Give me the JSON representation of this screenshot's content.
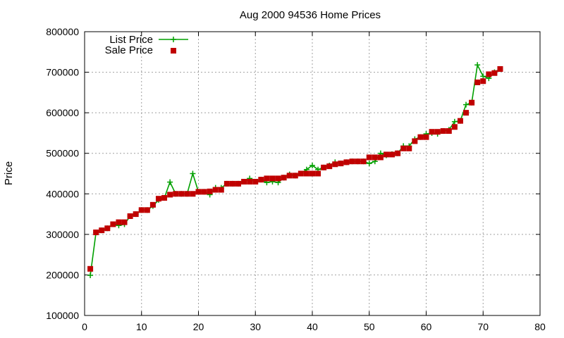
{
  "chart_data": {
    "type": "line",
    "title": "Aug 2000 94536 Home Prices",
    "xlabel": "",
    "ylabel": "Price",
    "xlim": [
      0,
      80
    ],
    "ylim": [
      100000,
      800000
    ],
    "x_ticks": [
      "0",
      "10",
      "20",
      "30",
      "40",
      "50",
      "60",
      "70",
      "80"
    ],
    "y_ticks": [
      "100000",
      "200000",
      "300000",
      "400000",
      "500000",
      "600000",
      "700000",
      "800000"
    ],
    "grid": true,
    "legend_position": "top-left",
    "series": [
      {
        "name": "List Price",
        "color": "#00a000",
        "marker": "plus",
        "x": [
          1,
          2,
          3,
          4,
          5,
          6,
          7,
          8,
          9,
          10,
          11,
          12,
          13,
          14,
          15,
          16,
          17,
          18,
          19,
          20,
          21,
          22,
          23,
          24,
          25,
          26,
          27,
          28,
          29,
          30,
          31,
          32,
          33,
          34,
          35,
          36,
          37,
          38,
          39,
          40,
          41,
          42,
          43,
          44,
          45,
          46,
          47,
          48,
          49,
          50,
          51,
          52,
          53,
          54,
          55,
          56,
          57,
          58,
          59,
          60,
          61,
          62,
          63,
          64,
          65,
          66,
          67,
          68,
          69,
          70,
          71,
          72,
          73
        ],
        "values": [
          199000,
          305000,
          310000,
          315000,
          325000,
          322000,
          325000,
          345000,
          350000,
          360000,
          360000,
          370000,
          385000,
          390000,
          429000,
          400000,
          400000,
          400000,
          450000,
          405000,
          405000,
          398000,
          415000,
          415000,
          425000,
          425000,
          425000,
          430000,
          438000,
          430000,
          435000,
          428000,
          430000,
          428000,
          440000,
          448000,
          445000,
          450000,
          460000,
          470000,
          460000,
          465000,
          470000,
          478000,
          475000,
          478000,
          480000,
          480000,
          480000,
          475000,
          480000,
          500000,
          495000,
          498000,
          500000,
          518000,
          518000,
          535000,
          540000,
          548000,
          550000,
          548000,
          555000,
          558000,
          578000,
          580000,
          620000,
          625000,
          718000,
          690000,
          685000,
          700000,
          708000
        ]
      },
      {
        "name": "Sale Price",
        "color": "#c00000",
        "marker": "square",
        "x": [
          1,
          2,
          3,
          4,
          5,
          6,
          7,
          8,
          9,
          10,
          11,
          12,
          13,
          14,
          15,
          16,
          17,
          18,
          19,
          20,
          21,
          22,
          23,
          24,
          25,
          26,
          27,
          28,
          29,
          30,
          31,
          32,
          33,
          34,
          35,
          36,
          37,
          38,
          39,
          40,
          41,
          42,
          43,
          44,
          45,
          46,
          47,
          48,
          49,
          50,
          51,
          52,
          53,
          54,
          55,
          56,
          57,
          58,
          59,
          60,
          61,
          62,
          63,
          64,
          65,
          66,
          67,
          68,
          69,
          70,
          71,
          72,
          73
        ],
        "values": [
          215000,
          305000,
          310000,
          315000,
          325000,
          330000,
          330000,
          345000,
          350000,
          360000,
          360000,
          373000,
          388000,
          390000,
          398000,
          400000,
          400000,
          400000,
          400000,
          405000,
          405000,
          406000,
          410000,
          410000,
          425000,
          425000,
          425000,
          430000,
          430000,
          430000,
          435000,
          438000,
          438000,
          438000,
          440000,
          445000,
          445000,
          450000,
          450000,
          450000,
          450000,
          465000,
          468000,
          473000,
          475000,
          478000,
          480000,
          480000,
          480000,
          490000,
          490000,
          490000,
          497000,
          497000,
          500000,
          512000,
          512000,
          530000,
          540000,
          540000,
          553000,
          553000,
          555000,
          555000,
          565000,
          580000,
          600000,
          625000,
          675000,
          678000,
          695000,
          698000,
          708000
        ]
      }
    ]
  }
}
